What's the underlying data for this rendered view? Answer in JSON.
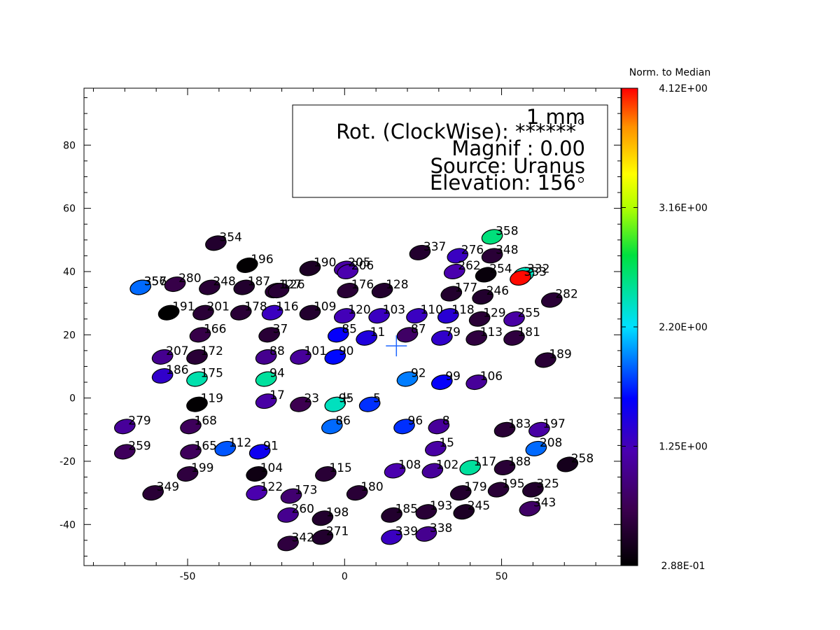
{
  "chart_data": {
    "type": "scatter",
    "x_range": [
      -83,
      88
    ],
    "y_range": [
      -53,
      98
    ],
    "x_ticks": [
      -50,
      0,
      50
    ],
    "y_ticks": [
      -40,
      -20,
      0,
      20,
      40,
      60,
      80
    ],
    "grid": false,
    "colorbar": {
      "title": "Norm. to Median",
      "ticks": [
        "4.12E+00",
        "3.16E+00",
        "2.20E+00",
        "1.25E+00",
        "2.88E-01"
      ],
      "min": 0.288,
      "max": 4.12,
      "colormap": "rainbow"
    },
    "info_box": {
      "line1": "1  mm",
      "line2": "Rot. (ClockWise): ******",
      "line3": "Magnif :   0.00",
      "line4": "Source: Uranus",
      "line5": "Elevation: 156"
    },
    "crosses": [
      {
        "x": 16.5,
        "y": 16.5,
        "color": "#1e66ff",
        "size": "large"
      },
      {
        "x": 0,
        "y": 0,
        "color": "#000000",
        "size": "small"
      }
    ],
    "beams": [
      {
        "id": "354",
        "x": -41,
        "y": 49,
        "v": 0.55
      },
      {
        "id": "196",
        "x": -31,
        "y": 42,
        "v": 0.3
      },
      {
        "id": "190",
        "x": -11,
        "y": 41,
        "v": 0.5
      },
      {
        "id": "205",
        "x": 0,
        "y": 41,
        "v": 1.15
      },
      {
        "id": "206",
        "x": 1,
        "y": 40,
        "v": 1.2
      },
      {
        "id": "337",
        "x": 24,
        "y": 46,
        "v": 0.55
      },
      {
        "id": "276",
        "x": 36,
        "y": 45,
        "v": 1.3
      },
      {
        "id": "358",
        "x": 47,
        "y": 51,
        "v": 2.6
      },
      {
        "id": "348",
        "x": 47,
        "y": 45,
        "v": 0.6
      },
      {
        "id": "262",
        "x": 35,
        "y": 40,
        "v": 1.2
      },
      {
        "id": "254",
        "x": 45,
        "y": 39,
        "v": 0.35
      },
      {
        "id": "332",
        "x": 57,
        "y": 39,
        "v": 2.4
      },
      {
        "id": "333",
        "x": 56,
        "y": 38,
        "v": 4.1
      },
      {
        "id": "356",
        "x": -65,
        "y": 35,
        "v": 1.9
      },
      {
        "id": "357",
        "x": -65,
        "y": 35,
        "v": 1.9
      },
      {
        "id": "280",
        "x": -54,
        "y": 36,
        "v": 0.7
      },
      {
        "id": "248",
        "x": -43,
        "y": 35,
        "v": 0.6
      },
      {
        "id": "187",
        "x": -32,
        "y": 35,
        "v": 0.55
      },
      {
        "id": "127",
        "x": -22,
        "y": 34,
        "v": 0.6
      },
      {
        "id": "126",
        "x": -21,
        "y": 34,
        "v": 0.6
      },
      {
        "id": "176",
        "x": 1,
        "y": 34,
        "v": 0.6
      },
      {
        "id": "128",
        "x": 12,
        "y": 34,
        "v": 0.55
      },
      {
        "id": "177",
        "x": 34,
        "y": 33,
        "v": 0.55
      },
      {
        "id": "246",
        "x": 44,
        "y": 32,
        "v": 0.55
      },
      {
        "id": "282",
        "x": 66,
        "y": 31,
        "v": 0.6
      },
      {
        "id": "191",
        "x": -56,
        "y": 27,
        "v": 0.29
      },
      {
        "id": "201",
        "x": -45,
        "y": 27,
        "v": 0.6
      },
      {
        "id": "178",
        "x": -33,
        "y": 27,
        "v": 0.6
      },
      {
        "id": "116",
        "x": -23,
        "y": 27,
        "v": 1.3
      },
      {
        "id": "109",
        "x": -11,
        "y": 27,
        "v": 0.55
      },
      {
        "id": "120",
        "x": 0,
        "y": 26,
        "v": 1.25
      },
      {
        "id": "103",
        "x": 11,
        "y": 26,
        "v": 1.3
      },
      {
        "id": "110",
        "x": 23,
        "y": 26,
        "v": 1.3
      },
      {
        "id": "118",
        "x": 33,
        "y": 26,
        "v": 1.4
      },
      {
        "id": "129",
        "x": 43,
        "y": 25,
        "v": 0.6
      },
      {
        "id": "255",
        "x": 54,
        "y": 25,
        "v": 1.15
      },
      {
        "id": "166",
        "x": -46,
        "y": 20,
        "v": 0.7
      },
      {
        "id": "37",
        "x": -24,
        "y": 20,
        "v": 0.6
      },
      {
        "id": "85",
        "x": -2,
        "y": 20,
        "v": 1.6
      },
      {
        "id": "11",
        "x": 7,
        "y": 19,
        "v": 1.45
      },
      {
        "id": "87",
        "x": 20,
        "y": 20,
        "v": 0.85
      },
      {
        "id": "79",
        "x": 31,
        "y": 19,
        "v": 1.35
      },
      {
        "id": "113",
        "x": 42,
        "y": 19,
        "v": 0.65
      },
      {
        "id": "181",
        "x": 54,
        "y": 19,
        "v": 0.65
      },
      {
        "id": "207",
        "x": -58,
        "y": 13,
        "v": 1.05
      },
      {
        "id": "172",
        "x": -47,
        "y": 13,
        "v": 0.6
      },
      {
        "id": "88",
        "x": -25,
        "y": 13,
        "v": 1.05
      },
      {
        "id": "101",
        "x": -14,
        "y": 13,
        "v": 1.1
      },
      {
        "id": "90",
        "x": -3,
        "y": 13,
        "v": 1.65
      },
      {
        "id": "189",
        "x": 64,
        "y": 12,
        "v": 0.6
      },
      {
        "id": "186",
        "x": -58,
        "y": 7,
        "v": 1.35
      },
      {
        "id": "175",
        "x": -47,
        "y": 6,
        "v": 2.45
      },
      {
        "id": "94",
        "x": -25,
        "y": 6,
        "v": 2.5
      },
      {
        "id": "92",
        "x": 20,
        "y": 6,
        "v": 1.95
      },
      {
        "id": "99",
        "x": 31,
        "y": 5,
        "v": 1.6
      },
      {
        "id": "106",
        "x": 42,
        "y": 5,
        "v": 1.1
      },
      {
        "id": "119",
        "x": -47,
        "y": -2,
        "v": 0.3
      },
      {
        "id": "17",
        "x": -25,
        "y": -1,
        "v": 1.15
      },
      {
        "id": "23",
        "x": -14,
        "y": -2,
        "v": 0.75
      },
      {
        "id": "95",
        "x": -3,
        "y": -2,
        "v": 2.4
      },
      {
        "id": "5",
        "x": 8,
        "y": -2,
        "v": 1.75
      },
      {
        "id": "279",
        "x": -70,
        "y": -9,
        "v": 1.1
      },
      {
        "id": "168",
        "x": -49,
        "y": -9,
        "v": 0.8
      },
      {
        "id": "86",
        "x": -4,
        "y": -9,
        "v": 1.9
      },
      {
        "id": "96",
        "x": 19,
        "y": -9,
        "v": 1.75
      },
      {
        "id": "8",
        "x": 30,
        "y": -9,
        "v": 1.1
      },
      {
        "id": "183",
        "x": 51,
        "y": -10,
        "v": 0.6
      },
      {
        "id": "197",
        "x": 62,
        "y": -10,
        "v": 1.15
      },
      {
        "id": "259",
        "x": -70,
        "y": -17,
        "v": 0.8
      },
      {
        "id": "165",
        "x": -49,
        "y": -17,
        "v": 0.8
      },
      {
        "id": "112",
        "x": -38,
        "y": -16,
        "v": 1.85
      },
      {
        "id": "91",
        "x": -27,
        "y": -17,
        "v": 1.55
      },
      {
        "id": "15",
        "x": 29,
        "y": -16,
        "v": 1.15
      },
      {
        "id": "208",
        "x": 61,
        "y": -16,
        "v": 1.9
      },
      {
        "id": "104",
        "x": -28,
        "y": -24,
        "v": 0.4
      },
      {
        "id": "115",
        "x": -6,
        "y": -24,
        "v": 0.6
      },
      {
        "id": "108",
        "x": 16,
        "y": -23,
        "v": 1.2
      },
      {
        "id": "102",
        "x": 28,
        "y": -23,
        "v": 1.1
      },
      {
        "id": "117",
        "x": 40,
        "y": -22,
        "v": 2.5
      },
      {
        "id": "188",
        "x": 51,
        "y": -22,
        "v": 0.6
      },
      {
        "id": "258",
        "x": 71,
        "y": -21,
        "v": 0.45
      },
      {
        "id": "199",
        "x": -50,
        "y": -24,
        "v": 0.65
      },
      {
        "id": "349",
        "x": -61,
        "y": -30,
        "v": 0.6
      },
      {
        "id": "122",
        "x": -28,
        "y": -30,
        "v": 1.2
      },
      {
        "id": "173",
        "x": -17,
        "y": -31,
        "v": 0.9
      },
      {
        "id": "180",
        "x": 4,
        "y": -30,
        "v": 0.6
      },
      {
        "id": "179",
        "x": 37,
        "y": -30,
        "v": 0.55
      },
      {
        "id": "195",
        "x": 49,
        "y": -29,
        "v": 0.6
      },
      {
        "id": "325",
        "x": 60,
        "y": -29,
        "v": 0.55
      },
      {
        "id": "260",
        "x": -18,
        "y": -37,
        "v": 1.05
      },
      {
        "id": "198",
        "x": -7,
        "y": -38,
        "v": 0.55
      },
      {
        "id": "185",
        "x": 15,
        "y": -37,
        "v": 0.55
      },
      {
        "id": "193",
        "x": 26,
        "y": -36,
        "v": 0.6
      },
      {
        "id": "245",
        "x": 38,
        "y": -36,
        "v": 0.5
      },
      {
        "id": "343",
        "x": 59,
        "y": -35,
        "v": 0.85
      },
      {
        "id": "342",
        "x": -18,
        "y": -46,
        "v": 0.65
      },
      {
        "id": "271",
        "x": -7,
        "y": -44,
        "v": 0.55
      },
      {
        "id": "339",
        "x": 15,
        "y": -44,
        "v": 1.3
      },
      {
        "id": "338",
        "x": 26,
        "y": -43,
        "v": 1.05
      }
    ]
  }
}
